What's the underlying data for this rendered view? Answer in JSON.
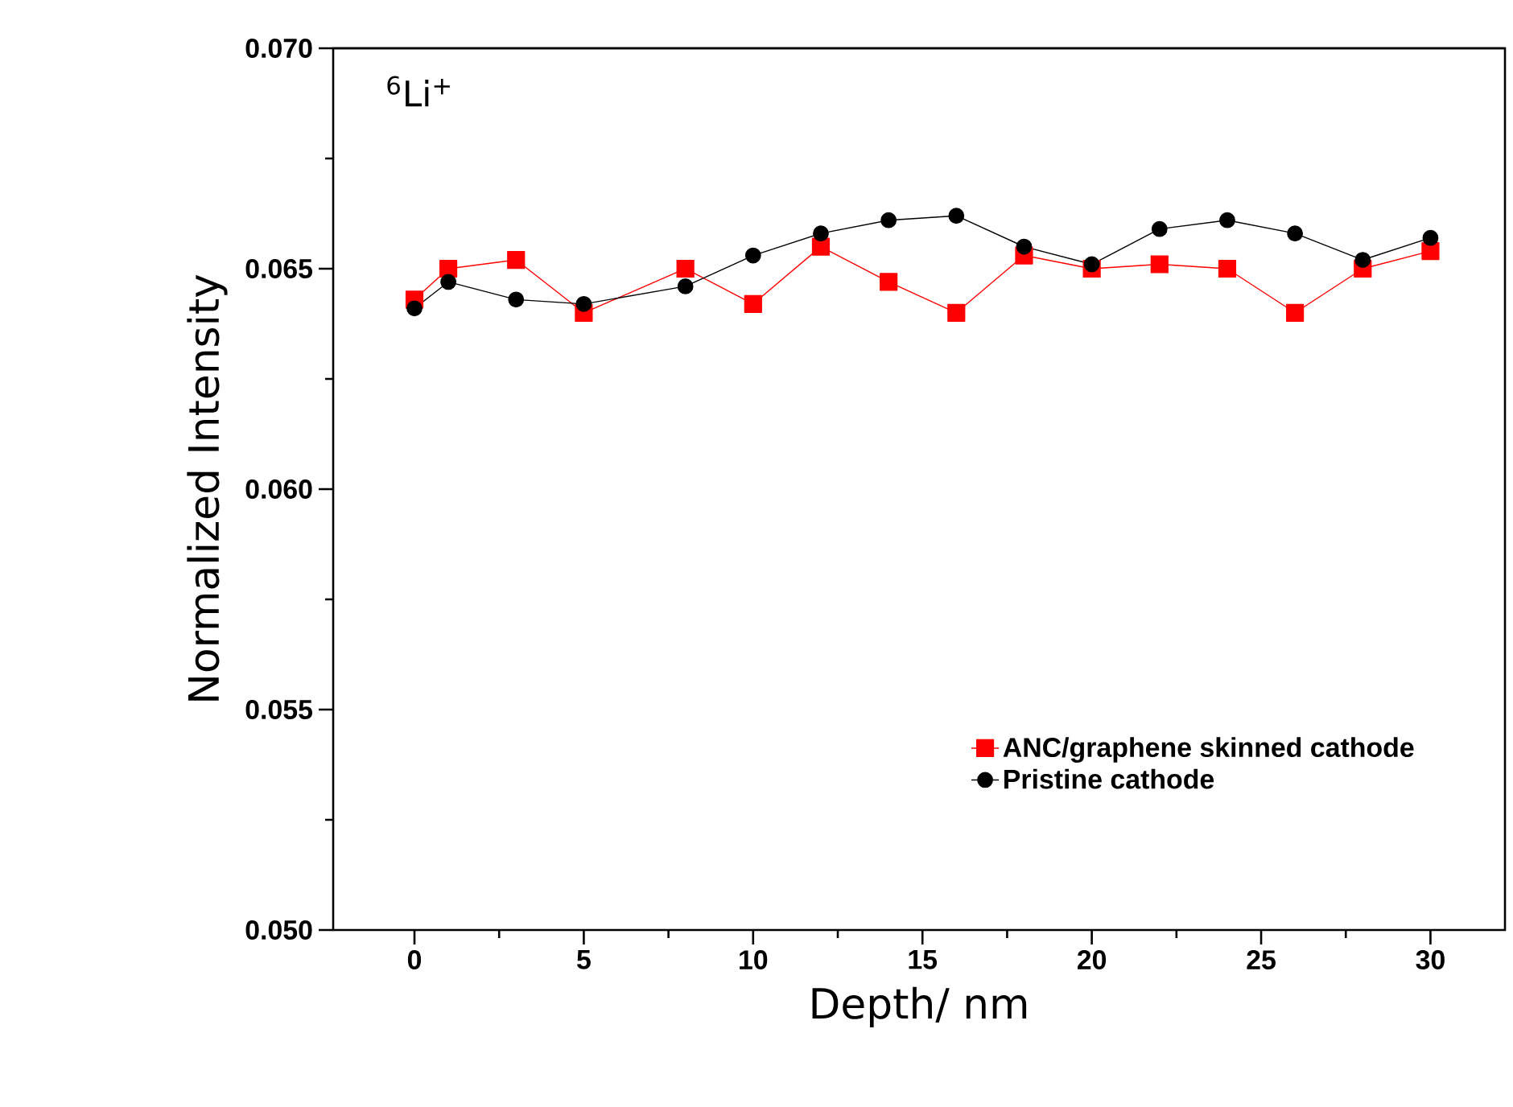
{
  "chart_data": {
    "type": "line",
    "xlabel": "Depth/ nm",
    "ylabel": "Normalized Intensity",
    "annotations": [
      "$^{6}$Li$^{+}$"
    ],
    "xlim": [
      -2.4,
      32.2
    ],
    "ylim": [
      0.05,
      0.07
    ],
    "xticks": [
      0,
      5,
      10,
      15,
      20,
      25,
      30
    ],
    "yticks": [
      {
        "value": 0.05,
        "label": "0.050"
      },
      {
        "value": 0.055,
        "label": "0.055"
      },
      {
        "value": 0.06,
        "label": "0.060"
      },
      {
        "value": 0.065,
        "label": "0.065"
      },
      {
        "value": 0.07,
        "label": "0.070"
      }
    ],
    "legend": "bottom right",
    "grid": false,
    "line_style": "solid",
    "series": [
      {
        "name": "ANC/graphene skinned cathode",
        "color": "#ff0000",
        "marker": "square",
        "x": [
          0,
          1,
          3,
          5,
          8,
          10,
          12,
          14,
          16,
          18,
          20,
          22,
          24,
          26,
          28,
          30
        ],
        "values": [
          0.0643,
          0.065,
          0.0652,
          0.064,
          0.065,
          0.0642,
          0.0655,
          0.0647,
          0.064,
          0.0653,
          0.065,
          0.0651,
          0.065,
          0.064,
          0.065,
          0.0654
        ]
      },
      {
        "name": "Pristine cathode",
        "color": "#000000",
        "marker": "circle",
        "x": [
          0,
          1,
          3,
          5,
          8,
          10,
          12,
          14,
          16,
          18,
          20,
          22,
          24,
          26,
          28,
          30
        ],
        "values": [
          0.0641,
          0.0647,
          0.0643,
          0.0642,
          0.0646,
          0.0653,
          0.0658,
          0.0661,
          0.0662,
          0.0655,
          0.0651,
          0.0659,
          0.0661,
          0.0658,
          0.0652,
          0.0657
        ]
      }
    ]
  }
}
